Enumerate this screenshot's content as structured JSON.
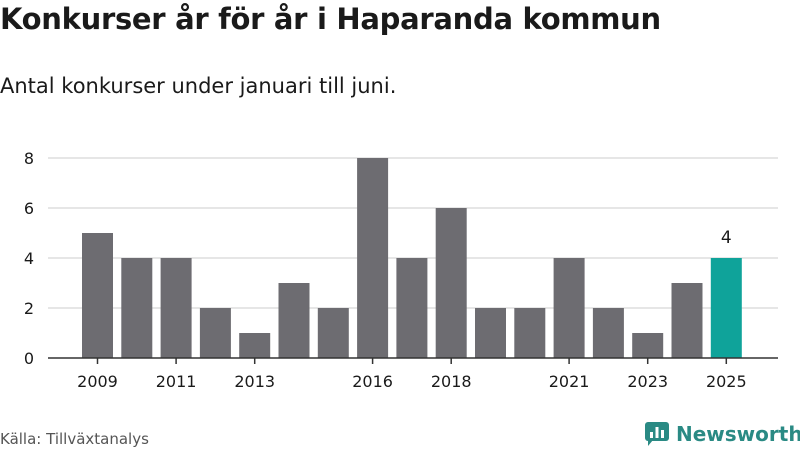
{
  "title": "Konkurser år för år i Haparanda kommun",
  "subtitle": "Antal konkurser under januari till juni.",
  "source": "Källa: Tillväxtanalys",
  "logo_text": "Newsworthy",
  "colors": {
    "bar": "#6d6c71",
    "highlight": "#0fa39a",
    "grid": "#dddddd",
    "axis": "#333333",
    "logo": "#2a8a84"
  },
  "icons": {
    "logo": "bar-chart-speech-bubble-icon"
  },
  "chart_data": {
    "type": "bar",
    "title": "Konkurser år för år i Haparanda kommun",
    "subtitle": "Antal konkurser under januari till juni.",
    "categories": [
      "2009",
      "2010",
      "2011",
      "2012",
      "2013",
      "2014",
      "2015",
      "2016",
      "2017",
      "2018",
      "2019",
      "2020",
      "2021",
      "2022",
      "2023",
      "2024",
      "2025"
    ],
    "values": [
      5,
      4,
      4,
      2,
      1,
      3,
      2,
      8,
      4,
      6,
      2,
      2,
      4,
      2,
      1,
      3,
      4
    ],
    "xticks": [
      "2009",
      "2011",
      "2013",
      "2016",
      "2018",
      "2021",
      "2023",
      "2025"
    ],
    "yticks": [
      0,
      2,
      4,
      6,
      8
    ],
    "ylim": [
      0,
      8
    ],
    "highlight": "2025",
    "data_labels": [
      {
        "category": "2025",
        "value": 4
      }
    ],
    "grid": true,
    "legend": "none"
  }
}
